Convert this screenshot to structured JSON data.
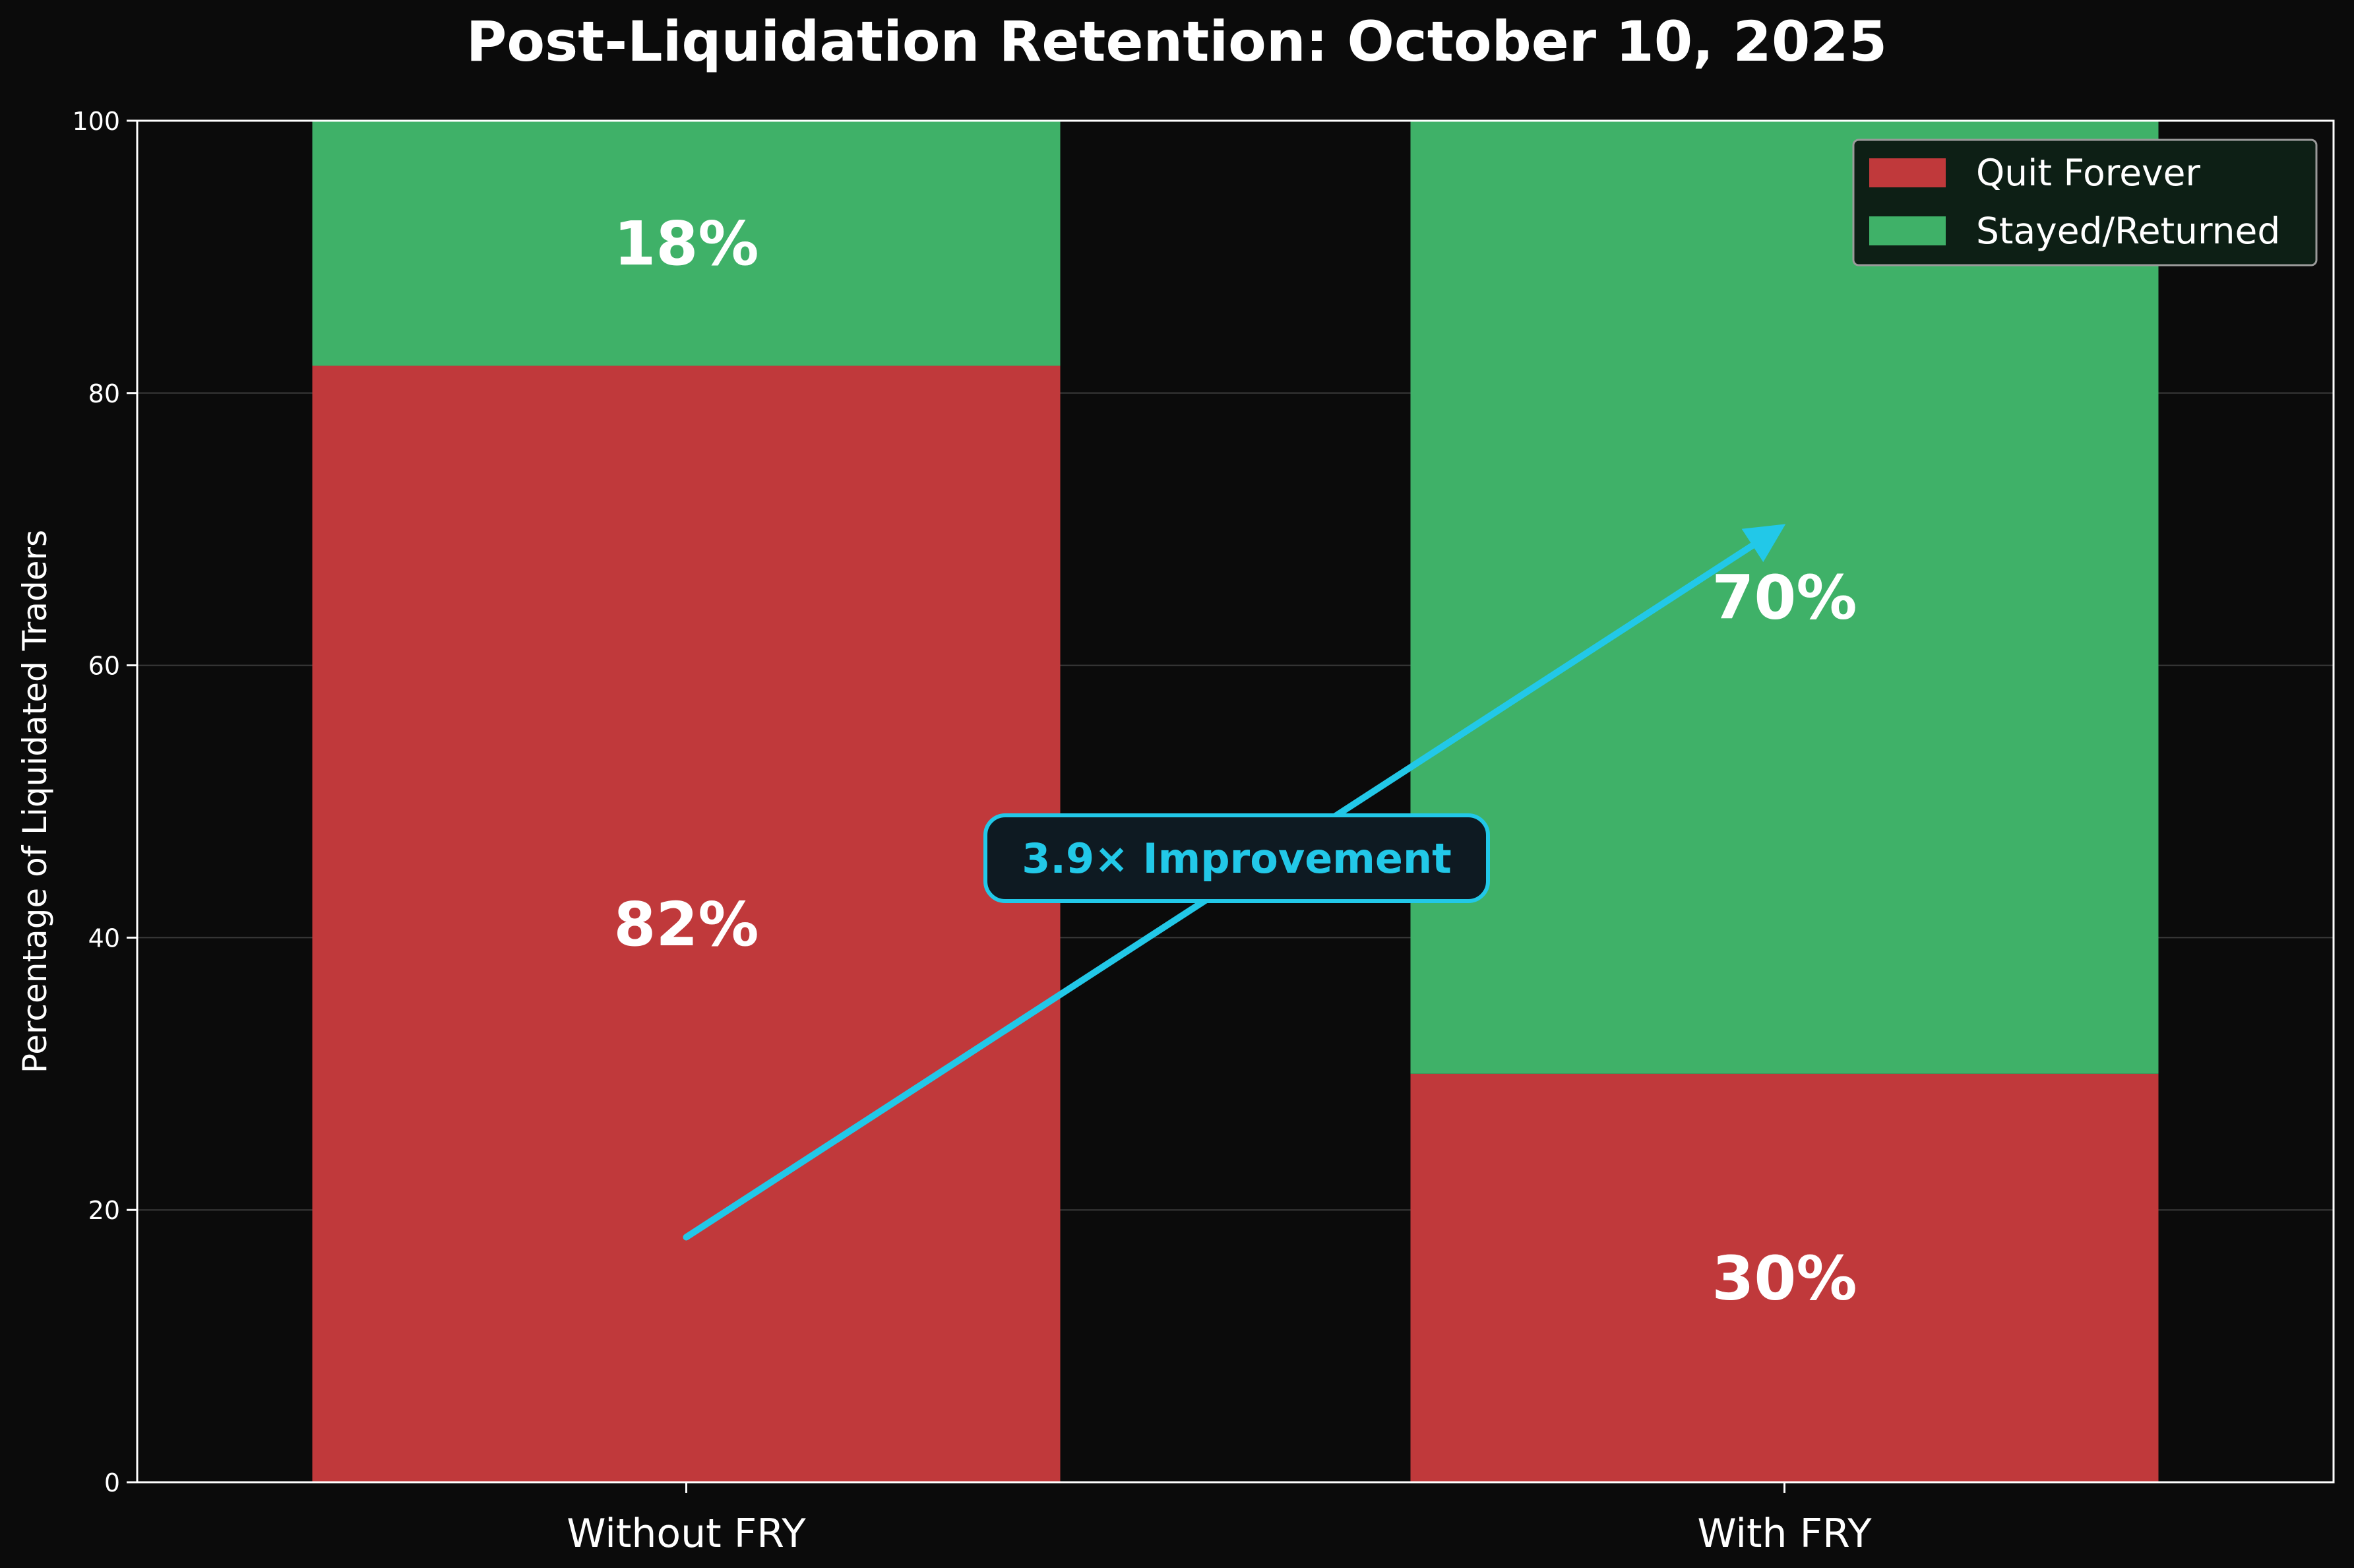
{
  "chart_data": {
    "type": "bar",
    "stacked": true,
    "title": "Post-Liquidation Retention: October 10, 2025",
    "xlabel": "",
    "ylabel": "Percentage of Liquidated Traders",
    "categories": [
      "Without FRY",
      "With FRY"
    ],
    "series": [
      {
        "name": "Quit Forever",
        "values": [
          82,
          30
        ],
        "color": "#c0393b",
        "labels": [
          "82%",
          "30%"
        ]
      },
      {
        "name": "Stayed/Returned",
        "values": [
          18,
          70
        ],
        "color": "#3fb168",
        "labels": [
          "18%",
          "70%"
        ]
      }
    ],
    "ylim": [
      0,
      100
    ],
    "yticks": [
      0,
      20,
      40,
      60,
      80,
      100
    ],
    "grid": true,
    "legend_position": "top-right",
    "annotation": {
      "text": "3.9× Improvement",
      "color": "#22c8e8",
      "arrow_from": {
        "category": "Without FRY",
        "y": 18
      },
      "arrow_to": {
        "category": "With FRY",
        "y": 70
      }
    },
    "colors": {
      "background": "#0b0b0b",
      "axis": "#ffffff",
      "text": "#ffffff",
      "grid": "#3a3a3a"
    }
  }
}
